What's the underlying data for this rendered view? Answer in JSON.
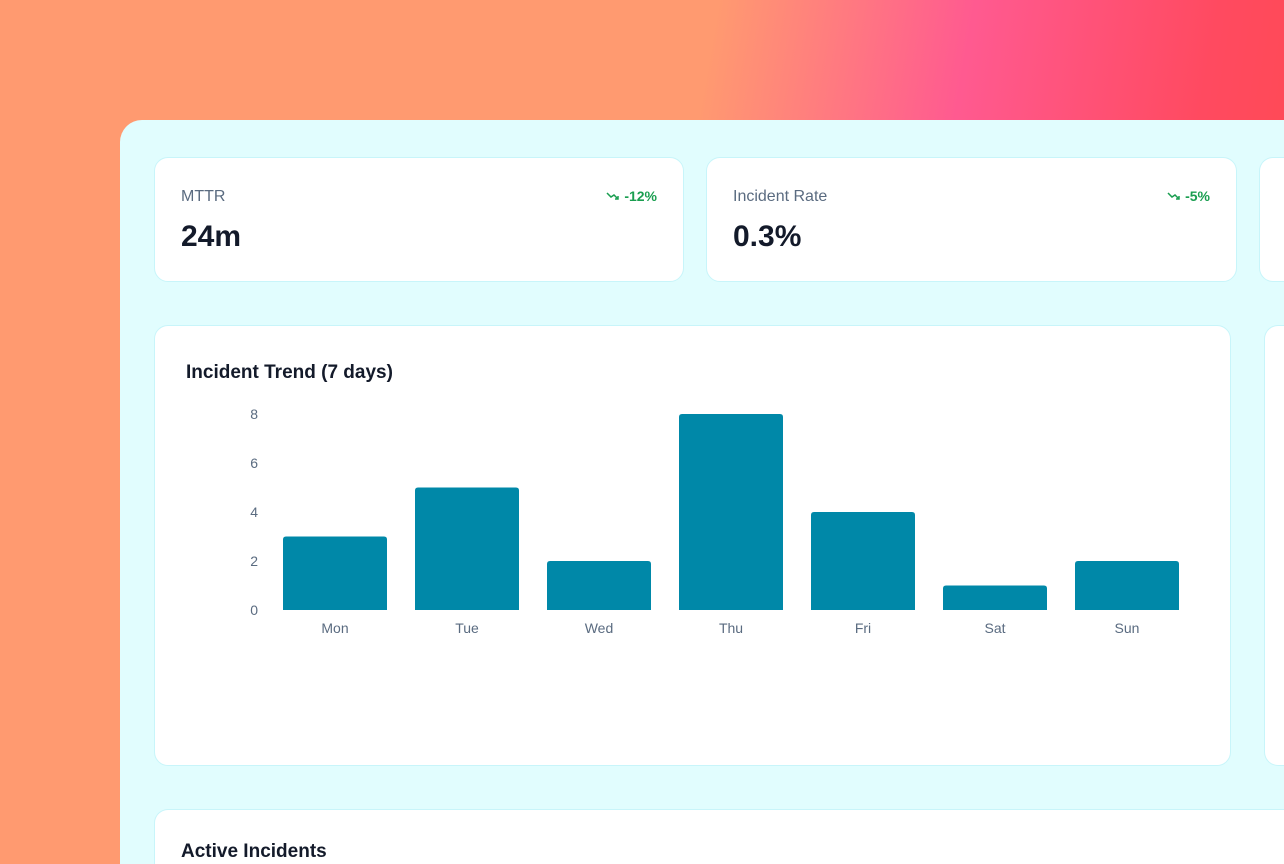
{
  "kpis": [
    {
      "label": "MTTR",
      "value": "24m",
      "change": "-12%",
      "trend_icon": "trending-down-icon"
    },
    {
      "label": "Incident Rate",
      "value": "0.3%",
      "change": "-5%",
      "trend_icon": "trending-down-icon"
    }
  ],
  "colors": {
    "bar": "#0088a8",
    "positive_change": "#1a9e50",
    "panel": "#e1fdfe"
  },
  "chart_data": {
    "type": "bar",
    "title": "Incident Trend (7 days)",
    "categories": [
      "Mon",
      "Tue",
      "Wed",
      "Thu",
      "Fri",
      "Sat",
      "Sun"
    ],
    "values": [
      3,
      5,
      2,
      8,
      4,
      1,
      2
    ],
    "yticks": [
      0,
      2,
      4,
      6,
      8
    ],
    "ylim": [
      0,
      8
    ],
    "grid": false
  },
  "active_incidents": {
    "title": "Active Incidents"
  }
}
